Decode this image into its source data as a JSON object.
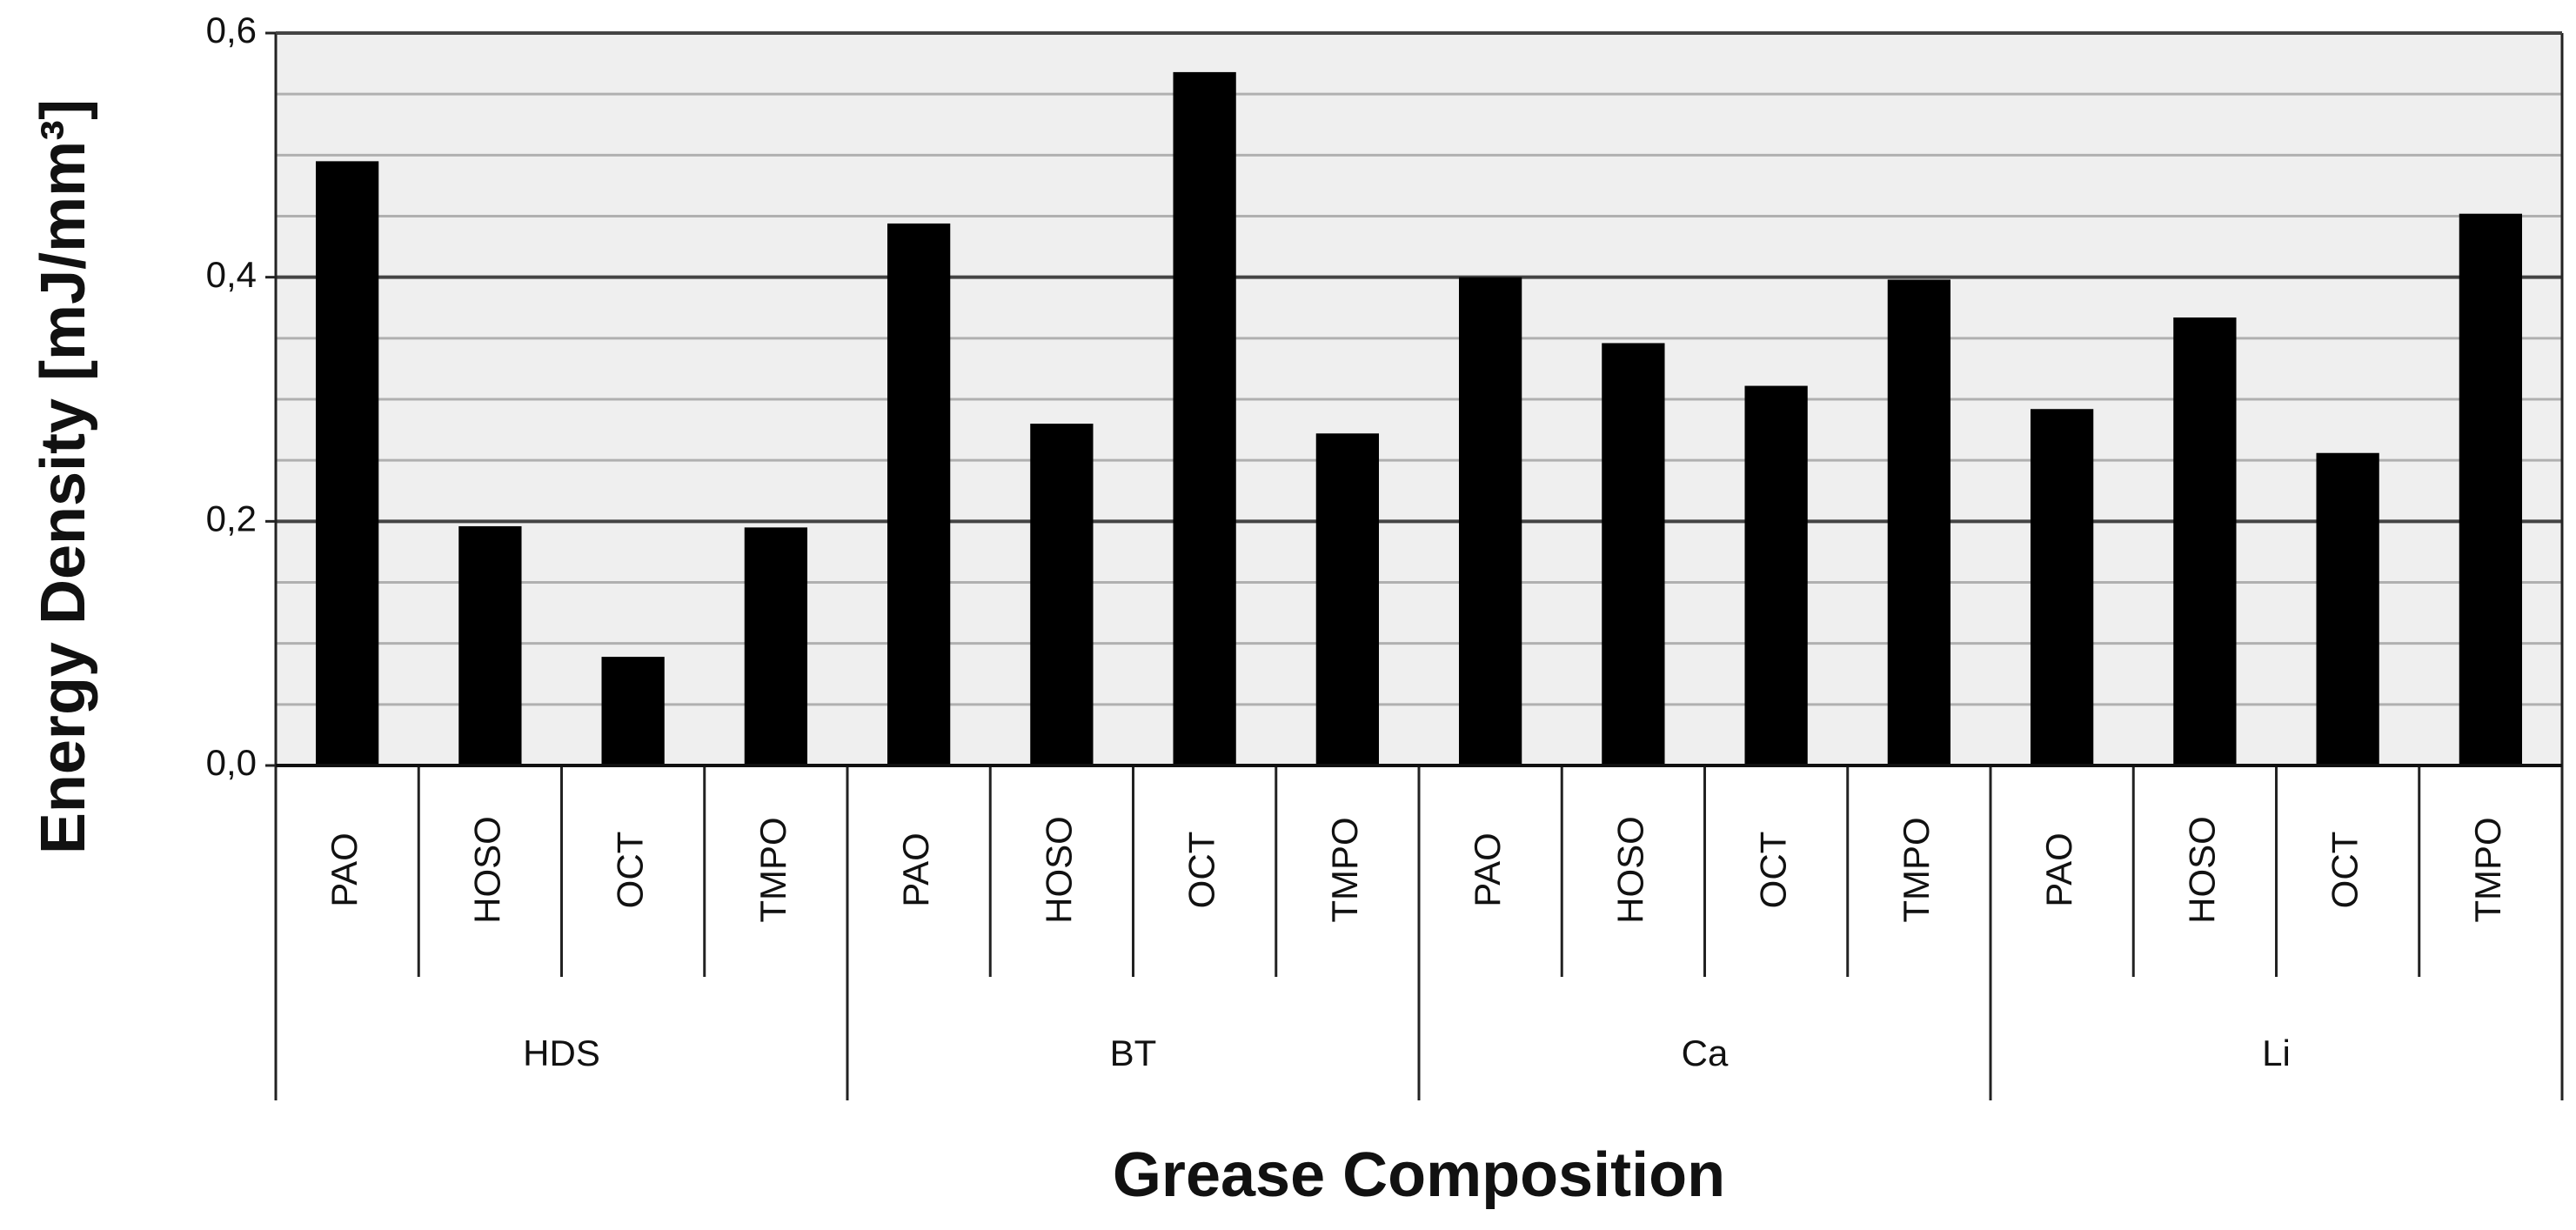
{
  "chart_data": {
    "type": "bar",
    "y_label": "Energy Density [mJ/mm³]",
    "x_label": "Grease Composition",
    "categories": [
      "PAO",
      "HOSO",
      "OCT",
      "TMPO",
      "PAO",
      "HOSO",
      "OCT",
      "TMPO",
      "PAO",
      "HOSO",
      "OCT",
      "TMPO",
      "PAO",
      "HOSO",
      "OCT",
      "TMPO"
    ],
    "groups": [
      "HDS",
      "BT",
      "Ca",
      "Li"
    ],
    "values": [
      0.495,
      0.196,
      0.089,
      0.195,
      0.444,
      0.28,
      0.568,
      0.272,
      0.4,
      0.346,
      0.311,
      0.398,
      0.292,
      0.367,
      0.256,
      0.452
    ],
    "color": "#000000",
    "ylim": [
      0,
      0.6
    ],
    "yticks": [
      {
        "value": 0,
        "label": "0,0"
      },
      {
        "value": 0.2,
        "label": "0,2"
      },
      {
        "value": 0.4,
        "label": "0,4"
      },
      {
        "value": 0.6,
        "label": "0,6"
      }
    ],
    "minor_yticks": [
      0.05,
      0.1,
      0.15,
      0.25,
      0.3,
      0.35,
      0.45,
      0.5,
      0.55
    ],
    "grid": true
  }
}
